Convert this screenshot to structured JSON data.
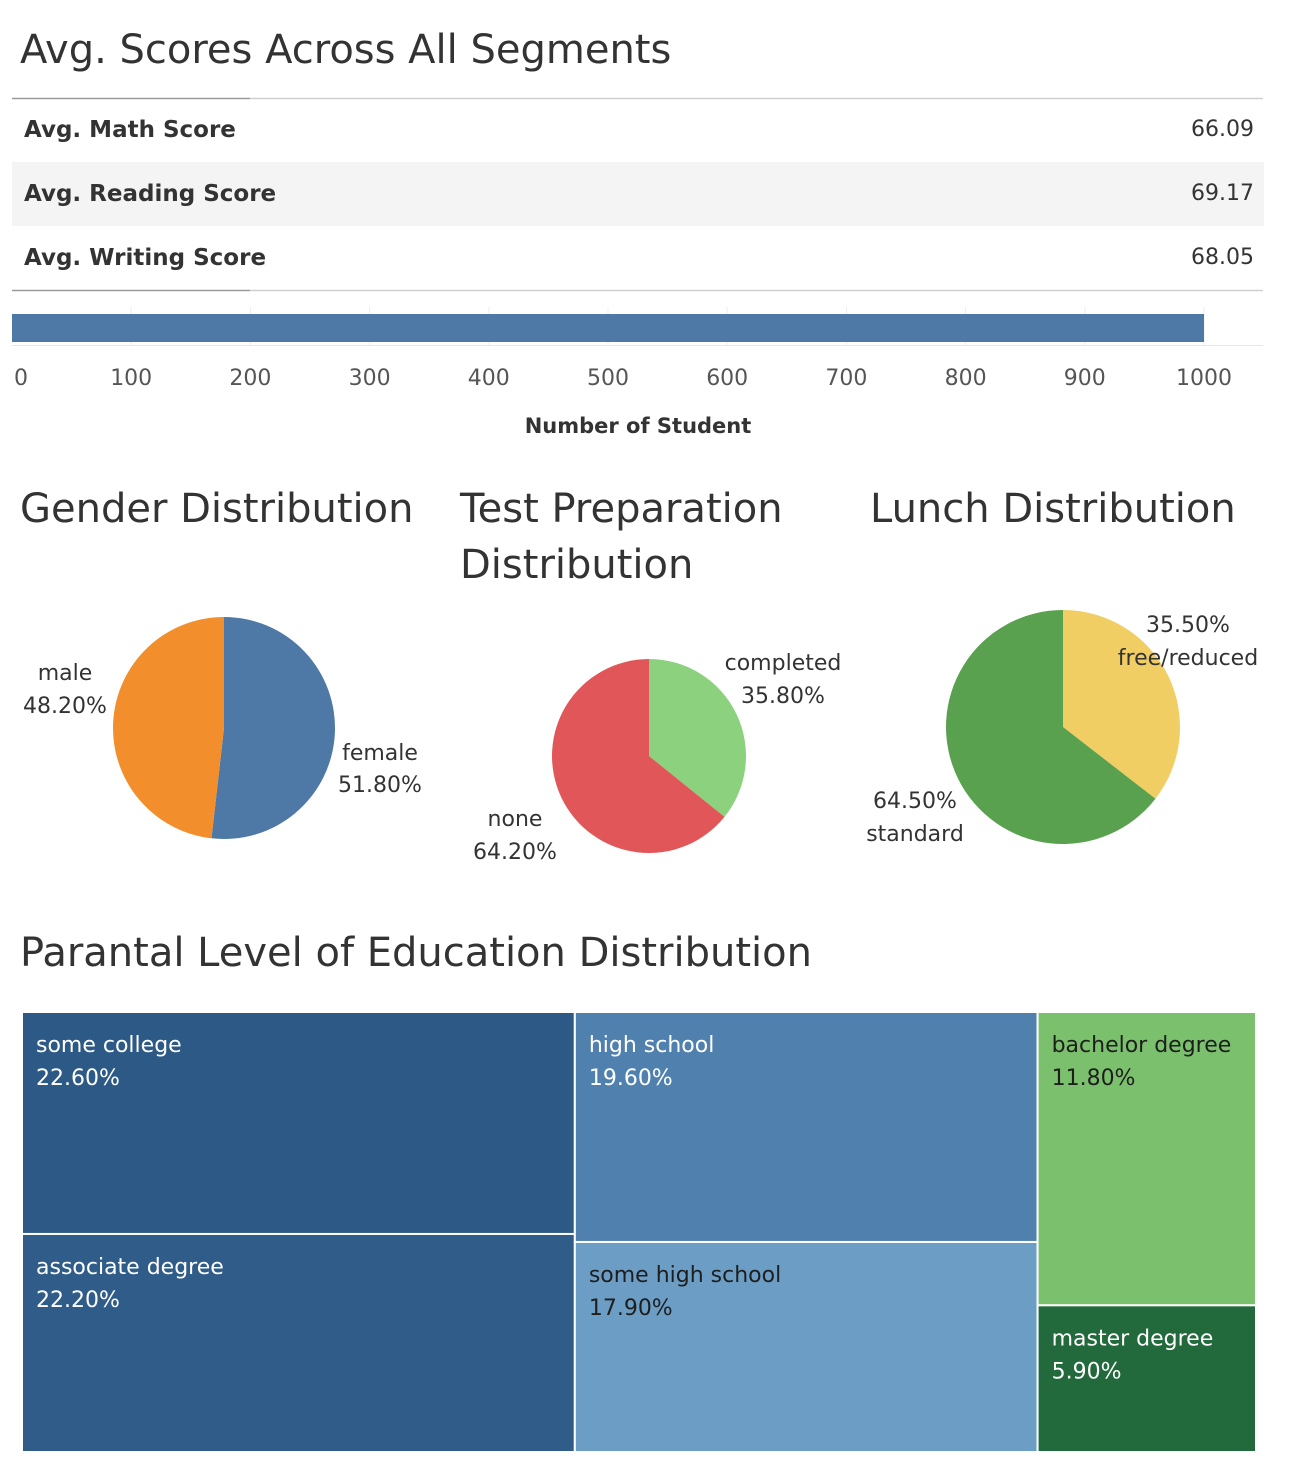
{
  "titles": {
    "avg_scores": "Avg. Scores Across All Segments",
    "gender": "Gender Distribution",
    "test_prep_line1": "Test Preparation",
    "test_prep_line2": "Distribution",
    "lunch": "Lunch Distribution",
    "parental": "Parantal Level of Education Distribution"
  },
  "colors": {
    "blue": "#4e79a7",
    "orange": "#f28e2b",
    "red": "#e15759",
    "light_green": "#8cd17d",
    "green": "#59a14f",
    "yellow": "#f1ce63",
    "row_alt": "#f4f4f4"
  },
  "chart_data": [
    {
      "type": "table",
      "title": "Avg. Scores Across All Segments",
      "rows": [
        {
          "label": "Avg. Math Score",
          "value": "66.09"
        },
        {
          "label": "Avg. Reading Score",
          "value": "69.17"
        },
        {
          "label": "Avg. Writing Score",
          "value": "68.05"
        }
      ]
    },
    {
      "type": "bar",
      "orientation": "horizontal",
      "values": [
        1000
      ],
      "xlabel": "Number of Student",
      "xlim": [
        0,
        1000
      ],
      "ticks": [
        0,
        100,
        200,
        300,
        400,
        500,
        600,
        700,
        800,
        900,
        1000
      ],
      "grid": true
    },
    {
      "type": "pie",
      "title": "Gender Distribution",
      "slices": [
        {
          "label": "female",
          "pct": "51.80%",
          "value": 51.8,
          "color": "#4e79a7"
        },
        {
          "label": "male",
          "pct": "48.20%",
          "value": 48.2,
          "color": "#f28e2b"
        }
      ]
    },
    {
      "type": "pie",
      "title": "Test Preparation Distribution",
      "slices": [
        {
          "label": "completed",
          "pct": "35.80%",
          "value": 35.8,
          "color": "#8cd17d"
        },
        {
          "label": "none",
          "pct": "64.20%",
          "value": 64.2,
          "color": "#e15759"
        }
      ]
    },
    {
      "type": "pie",
      "title": "Lunch Distribution",
      "slices": [
        {
          "label": "free/reduced",
          "pct": "35.50%",
          "value": 35.5,
          "color": "#f1ce63"
        },
        {
          "label": "standard",
          "pct": "64.50%",
          "value": 64.5,
          "color": "#59a14f"
        }
      ]
    },
    {
      "type": "treemap",
      "title": "Parantal Level of Education Distribution",
      "items": [
        {
          "label": "some college",
          "pct": "22.60%",
          "value": 22.6,
          "color": "#2c5985",
          "text_color": "#ffffff"
        },
        {
          "label": "associate degree",
          "pct": "22.20%",
          "value": 22.2,
          "color": "#305c89",
          "text_color": "#ffffff"
        },
        {
          "label": "high school",
          "pct": "19.60%",
          "value": 19.6,
          "color": "#5081ae",
          "text_color": "#ffffff"
        },
        {
          "label": "some high school",
          "pct": "17.90%",
          "value": 17.9,
          "color": "#6b9dc5",
          "text_color": "#1e1e1e"
        },
        {
          "label": "bachelor degree",
          "pct": "11.80%",
          "value": 11.8,
          "color": "#7bc06d",
          "text_color": "#1e1e1e"
        },
        {
          "label": "master degree",
          "pct": "5.90%",
          "value": 5.9,
          "color": "#226a3c",
          "text_color": "#ffffff"
        }
      ]
    }
  ]
}
